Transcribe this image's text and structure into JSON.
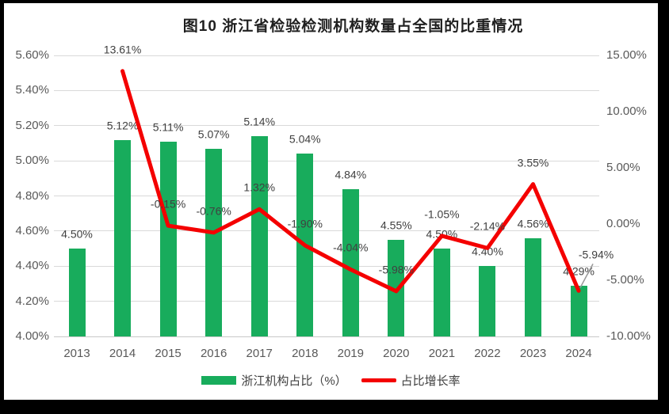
{
  "title": "图10  浙江省检验检测机构数量占全国的比重情况",
  "chart_data": {
    "type": "combo",
    "categories": [
      "2013",
      "2014",
      "2015",
      "2016",
      "2017",
      "2018",
      "2019",
      "2020",
      "2021",
      "2022",
      "2023",
      "2024"
    ],
    "series": [
      {
        "name": "浙江机构占比（%）",
        "type": "bar",
        "axis": "left",
        "color": "#18AC5C",
        "values": [
          4.5,
          5.12,
          5.11,
          5.07,
          5.14,
          5.04,
          4.84,
          4.55,
          4.5,
          4.4,
          4.56,
          4.29
        ],
        "labels": [
          "4.50%",
          "5.12%",
          "5.11%",
          "5.07%",
          "5.14%",
          "5.04%",
          "4.84%",
          "4.55%",
          "4.50%",
          "4.40%",
          "4.56%",
          "4.29%"
        ]
      },
      {
        "name": "占比增长率",
        "type": "line",
        "axis": "right",
        "color": "#F40000",
        "values": [
          null,
          13.61,
          -0.15,
          -0.76,
          1.32,
          -1.9,
          -4.04,
          -5.98,
          -1.05,
          -2.14,
          3.55,
          -5.94
        ],
        "labels": [
          null,
          "13.61%",
          "-0.15%",
          "-0.76%",
          "1.32%",
          "-1.90%",
          "-4.04%",
          "-5.98%",
          "-1.05%",
          "-2.14%",
          "3.55%",
          "-5.94%"
        ]
      }
    ],
    "left_axis": {
      "min": 4.0,
      "max": 5.6,
      "step": 0.2,
      "ticks": [
        "5.60%",
        "5.40%",
        "5.20%",
        "5.00%",
        "4.80%",
        "4.60%",
        "4.40%",
        "4.20%",
        "4.00%"
      ]
    },
    "right_axis": {
      "min": -10.0,
      "max": 15.0,
      "step": 5.0,
      "ticks": [
        "15.00%",
        "10.00%",
        "5.00%",
        "0.00%",
        "-5.00%",
        "-10.00%"
      ]
    },
    "grid": true,
    "legend_position": "bottom",
    "colors": {
      "grid": "#d9d9d9",
      "axis_text": "#595959",
      "label_text": "#404040",
      "leader": "#999999"
    }
  }
}
